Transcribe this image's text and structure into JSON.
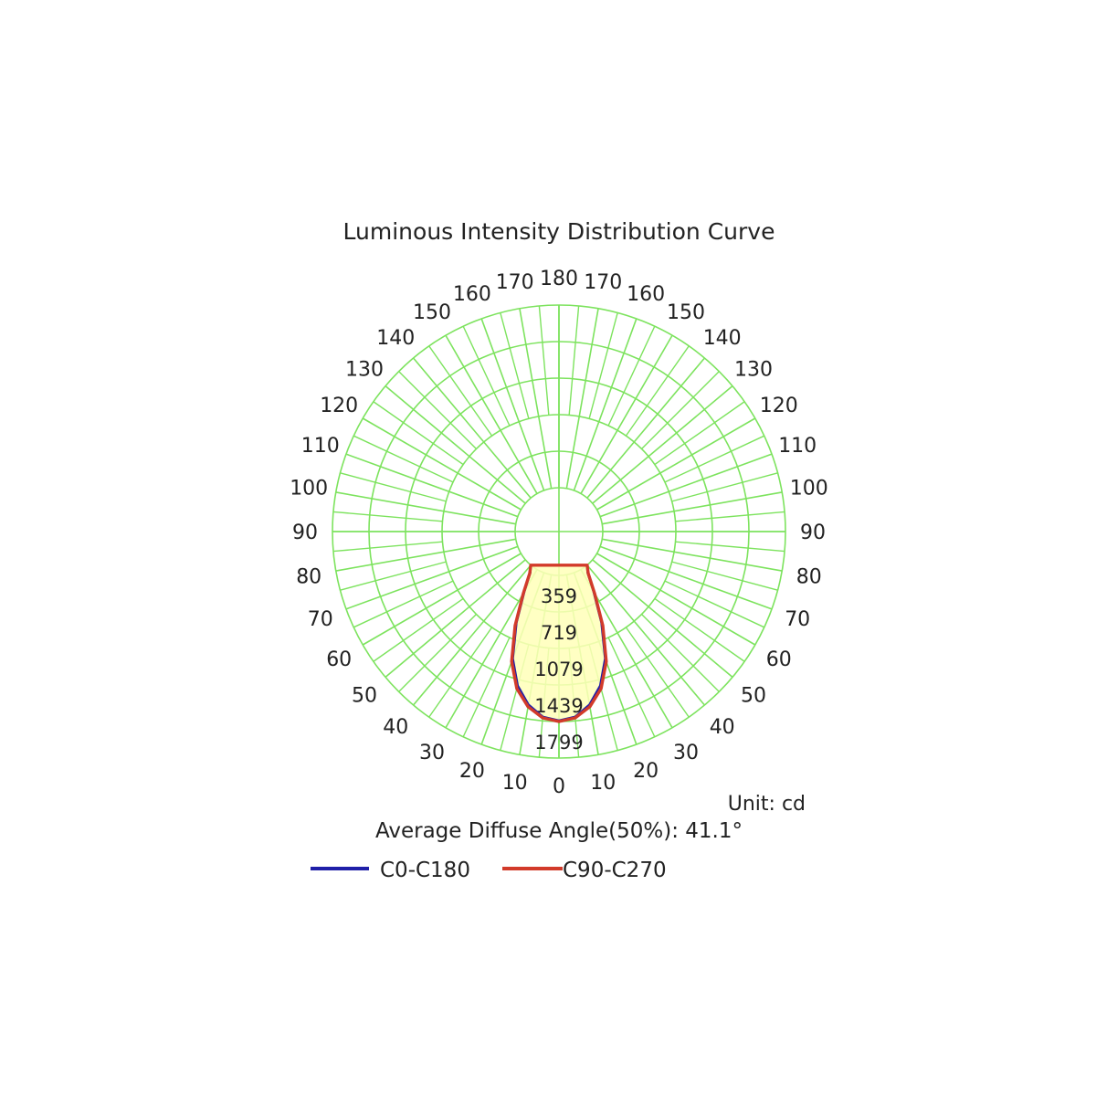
{
  "chart_data": {
    "type": "polar",
    "title": "Luminous Intensity Distribution Curve",
    "unit_label": "Unit: cd",
    "footer": "Average Diffuse Angle(50%): 41.1°",
    "radial_max": 1799,
    "radial_labels": [
      "359",
      "719",
      "1079",
      "1439",
      "1799"
    ],
    "angle_labels_left": [
      "0",
      "10",
      "20",
      "30",
      "40",
      "50",
      "60",
      "70",
      "80",
      "90",
      "100",
      "110",
      "120",
      "130",
      "140",
      "150",
      "160",
      "170",
      "180"
    ],
    "angle_labels_right": [
      "10",
      "20",
      "30",
      "40",
      "50",
      "60",
      "70",
      "80",
      "90",
      "100",
      "110",
      "120",
      "130",
      "140",
      "150",
      "160",
      "170"
    ],
    "colors": {
      "grid": "#7de35e",
      "fill": "#ffffb8",
      "c0": "#1f1fa8",
      "c90": "#d23a2a"
    },
    "series": [
      {
        "name": "C0-C180",
        "color": "#1f1fa8",
        "angles": [
          0,
          5,
          10,
          15,
          20,
          25,
          30,
          35,
          40
        ],
        "values": [
          1430,
          1400,
          1300,
          1140,
          900,
          560,
          250,
          60,
          0
        ]
      },
      {
        "name": "C90-C270",
        "color": "#d23a2a",
        "angles": [
          0,
          5,
          10,
          15,
          20,
          25,
          30,
          35,
          40
        ],
        "values": [
          1439,
          1410,
          1320,
          1170,
          930,
          590,
          270,
          70,
          0
        ]
      }
    ]
  }
}
